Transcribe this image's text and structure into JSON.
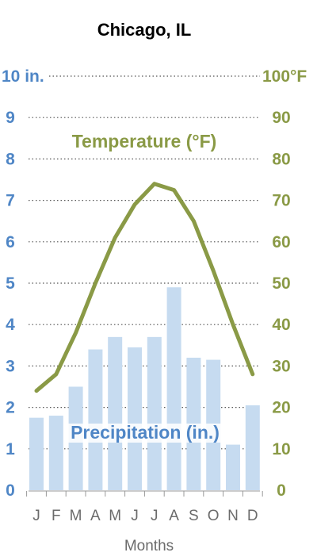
{
  "chart_data": {
    "type": "bar+line",
    "title": "Chicago, IL",
    "xlabel": "Months",
    "categories": [
      "J",
      "F",
      "M",
      "A",
      "M",
      "J",
      "J",
      "A",
      "S",
      "O",
      "N",
      "D"
    ],
    "series": [
      {
        "name": "Precipitation (in.)",
        "type": "bar",
        "axis": "left",
        "color": "#c6dbf0",
        "values": [
          1.75,
          1.8,
          2.5,
          3.4,
          3.7,
          3.45,
          3.7,
          4.9,
          3.2,
          3.15,
          1.1,
          2.05
        ]
      },
      {
        "name": "Temperature (°F)",
        "type": "line",
        "axis": "right",
        "color": "#8a9a46",
        "values": [
          24,
          28,
          38,
          50,
          61,
          69,
          74,
          72.5,
          65,
          53,
          40,
          28
        ]
      }
    ],
    "y_left": {
      "range": [
        0,
        10
      ],
      "ticks": [
        0,
        1,
        2,
        3,
        4,
        5,
        6,
        7,
        8,
        9,
        10
      ],
      "tick_labels": [
        "0",
        "1",
        "2",
        "3",
        "4",
        "5",
        "6",
        "7",
        "8",
        "9",
        "10 in."
      ],
      "color": "#4f86c6"
    },
    "y_right": {
      "range": [
        0,
        100
      ],
      "ticks": [
        0,
        10,
        20,
        30,
        40,
        50,
        60,
        70,
        80,
        90,
        100
      ],
      "tick_labels": [
        "0",
        "10",
        "20",
        "30",
        "40",
        "50",
        "60",
        "70",
        "80",
        "90",
        "100°F"
      ],
      "color": "#8a9a46"
    },
    "grid": "dotted horizontal"
  }
}
